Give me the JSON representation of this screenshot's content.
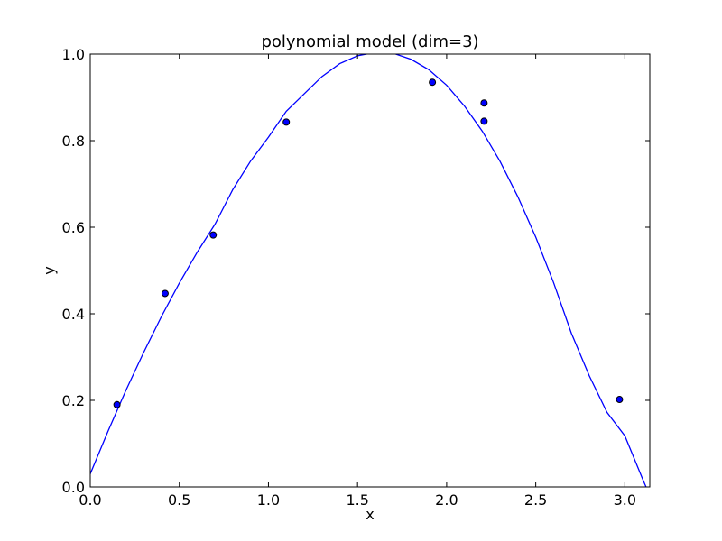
{
  "chart_data": {
    "type": "scatter",
    "title": "polynomial model (dim=3)",
    "xlabel": "x",
    "ylabel": "y",
    "xlim": [
      0.0,
      3.14
    ],
    "ylim": [
      0.0,
      1.0
    ],
    "x_ticks": [
      "0.0",
      "0.5",
      "1.0",
      "1.5",
      "2.0",
      "2.5",
      "3.0"
    ],
    "x_tick_values": [
      0.0,
      0.5,
      1.0,
      1.5,
      2.0,
      2.5,
      3.0
    ],
    "y_ticks": [
      "0.0",
      "0.2",
      "0.4",
      "0.6",
      "0.8",
      "1.0"
    ],
    "y_tick_values": [
      0.0,
      0.2,
      0.4,
      0.6,
      0.8,
      1.0
    ],
    "grid": false,
    "colors": {
      "line": "#0000ff",
      "marker_fill": "#0000ff",
      "marker_edge": "#000000",
      "axes": "#000000"
    },
    "points": [
      {
        "x": 0.15,
        "y": 0.19
      },
      {
        "x": 0.42,
        "y": 0.447
      },
      {
        "x": 0.69,
        "y": 0.582
      },
      {
        "x": 1.1,
        "y": 0.843
      },
      {
        "x": 1.92,
        "y": 0.935
      },
      {
        "x": 2.21,
        "y": 0.887
      },
      {
        "x": 2.21,
        "y": 0.845
      },
      {
        "x": 2.97,
        "y": 0.202
      }
    ],
    "model_curve": {
      "type": "line",
      "x": [
        0.0,
        0.1,
        0.2,
        0.3,
        0.4,
        0.5,
        0.6,
        0.7,
        0.8,
        0.9,
        1.0,
        1.1,
        1.2,
        1.3,
        1.4,
        1.5,
        1.6,
        1.7,
        1.8,
        1.9,
        2.0,
        2.1,
        2.2,
        2.3,
        2.4,
        2.5,
        2.6,
        2.7,
        2.8,
        2.9,
        3.0,
        3.1,
        3.14
      ],
      "y": [
        0.03,
        0.129,
        0.223,
        0.311,
        0.394,
        0.471,
        0.542,
        0.607,
        0.687,
        0.753,
        0.808,
        0.868,
        0.908,
        0.948,
        0.978,
        0.996,
        1.004,
        1.002,
        0.988,
        0.964,
        0.928,
        0.88,
        0.822,
        0.752,
        0.67,
        0.577,
        0.472,
        0.355,
        0.257,
        0.172,
        0.118,
        0.018,
        -0.02
      ]
    }
  }
}
